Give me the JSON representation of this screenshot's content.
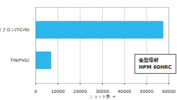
{
  "chart_data": {
    "type": "bar",
    "orientation": "horizontal",
    "categories": [
      "タイクロン(TiCrN)",
      "TiN(PVD)"
    ],
    "values": [
      57500,
      7000
    ],
    "color": "#2db6ea",
    "x_label": "ショット数",
    "xlim": [
      0,
      60000
    ],
    "xticks": [
      0,
      10000,
      20000,
      30000,
      40000,
      50000,
      60000
    ],
    "grid": true,
    "annotations": [
      "金型母材",
      "HPM 60HRC"
    ]
  }
}
